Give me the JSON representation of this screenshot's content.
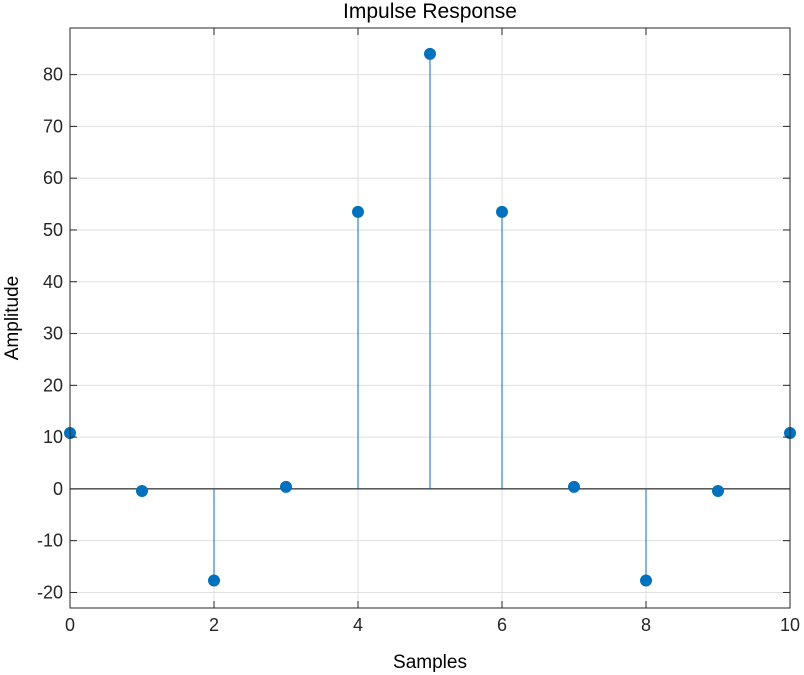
{
  "chart_data": {
    "type": "stem",
    "title": "Impulse Response",
    "xlabel": "Samples",
    "ylabel": "Amplitude",
    "xlim": [
      0,
      10
    ],
    "ylim": [
      -23,
      89
    ],
    "xticks": [
      "0",
      "2",
      "4",
      "6",
      "8",
      "10"
    ],
    "yticks": [
      "-20",
      "-10",
      "0",
      "10",
      "20",
      "30",
      "40",
      "50",
      "60",
      "70",
      "80"
    ],
    "grid": true,
    "series": [
      {
        "x": [
          0,
          1,
          2,
          3,
          4,
          5,
          6,
          7,
          8,
          9,
          10
        ],
        "values": [
          10.8,
          -0.4,
          -17.7,
          0.4,
          53.5,
          84,
          53.5,
          0.4,
          -17.7,
          -0.4,
          10.8
        ],
        "color": "#0072BD"
      }
    ],
    "colors": {
      "stem": "#0072BD",
      "grid": "#dfdfdf",
      "axis": "#262626",
      "baseline": "#000000"
    }
  }
}
